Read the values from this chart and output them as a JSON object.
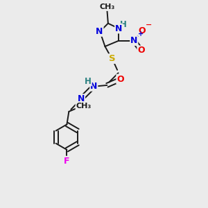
{
  "bg_color": "#ebebeb",
  "bond_color": "#1a1a1a",
  "atom_colors": {
    "N": "#0000dd",
    "O": "#ee0000",
    "S": "#ccaa00",
    "F": "#ee00ee",
    "H": "#2a8080",
    "C": "#1a1a1a"
  }
}
